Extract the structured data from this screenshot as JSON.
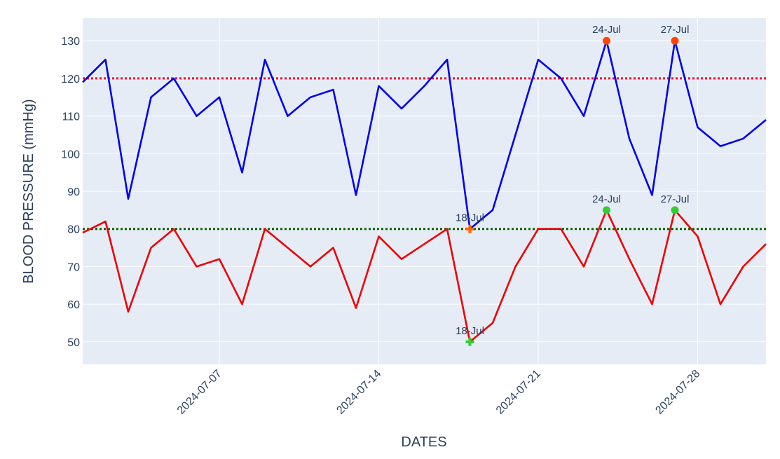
{
  "chart_data": {
    "type": "line",
    "xlabel": "DATES",
    "ylabel": "BLOOD PRESSURE (mmHg)",
    "x": [
      "2024-07-02",
      "2024-07-03",
      "2024-07-04",
      "2024-07-05",
      "2024-07-06",
      "2024-07-07",
      "2024-07-08",
      "2024-07-09",
      "2024-07-10",
      "2024-07-11",
      "2024-07-12",
      "2024-07-13",
      "2024-07-14",
      "2024-07-15",
      "2024-07-16",
      "2024-07-17",
      "2024-07-18",
      "2024-07-19",
      "2024-07-20",
      "2024-07-21",
      "2024-07-22",
      "2024-07-23",
      "2024-07-24",
      "2024-07-25",
      "2024-07-26",
      "2024-07-27",
      "2024-07-28",
      "2024-07-29",
      "2024-07-30",
      "2024-07-31"
    ],
    "x_tick_dates": [
      "2024-07-07",
      "2024-07-14",
      "2024-07-21",
      "2024-07-28"
    ],
    "x_tick_labels": [
      "2024-07-07",
      "2024-07-14",
      "2024-07-21",
      "2024-07-28"
    ],
    "y_ticks": [
      50,
      60,
      70,
      80,
      90,
      100,
      110,
      120,
      130
    ],
    "y_tick_labels": [
      "50",
      "60",
      "70",
      "80",
      "90",
      "100",
      "110",
      "120",
      "130"
    ],
    "xlim": [
      "2024-07-01",
      "2024-07-31"
    ],
    "ylim": [
      44,
      136
    ],
    "grid": true,
    "series": [
      {
        "color": "#0000ee",
        "x": [
          "2024-07-01",
          "2024-07-02",
          "2024-07-03",
          "2024-07-04",
          "2024-07-05",
          "2024-07-06",
          "2024-07-07",
          "2024-07-08",
          "2024-07-09",
          "2024-07-10",
          "2024-07-11",
          "2024-07-12",
          "2024-07-13",
          "2024-07-14",
          "2024-07-15",
          "2024-07-16",
          "2024-07-17",
          "2024-07-18",
          "2024-07-19",
          "2024-07-20",
          "2024-07-21",
          "2024-07-22",
          "2024-07-23",
          "2024-07-24",
          "2024-07-25",
          "2024-07-26",
          "2024-07-27",
          "2024-07-28",
          "2024-07-29",
          "2024-07-30",
          "2024-07-31"
        ],
        "values": [
          119,
          125,
          88,
          115,
          120,
          110,
          115,
          95,
          125,
          110,
          115,
          117,
          89,
          118,
          112,
          118,
          125,
          80,
          85,
          105,
          125,
          120,
          110,
          130,
          104,
          89,
          130,
          107,
          102,
          104,
          109
        ]
      },
      {
        "color": "#ee0000",
        "x": [
          "2024-07-01",
          "2024-07-02",
          "2024-07-03",
          "2024-07-04",
          "2024-07-05",
          "2024-07-06",
          "2024-07-07",
          "2024-07-08",
          "2024-07-09",
          "2024-07-10",
          "2024-07-11",
          "2024-07-12",
          "2024-07-13",
          "2024-07-14",
          "2024-07-15",
          "2024-07-16",
          "2024-07-17",
          "2024-07-18",
          "2024-07-19",
          "2024-07-20",
          "2024-07-21",
          "2024-07-22",
          "2024-07-23",
          "2024-07-24",
          "2024-07-25",
          "2024-07-26",
          "2024-07-27",
          "2024-07-28",
          "2024-07-29",
          "2024-07-30",
          "2024-07-31"
        ],
        "values": [
          79,
          82,
          58,
          75,
          80,
          70,
          72,
          60,
          80,
          75,
          70,
          75,
          59,
          78,
          72,
          76,
          80,
          50,
          55,
          70,
          80,
          80,
          70,
          85,
          72,
          60,
          85,
          78,
          60,
          70,
          76
        ]
      }
    ],
    "reference_lines": [
      {
        "value": 120,
        "color": "#ee0033",
        "style": "dotted"
      },
      {
        "value": 80,
        "color": "#006400",
        "style": "dotted"
      }
    ],
    "markers": [
      {
        "x": "2024-07-18",
        "y": 80,
        "shape": "cross",
        "color": "#ff6600",
        "label": "18-Jul"
      },
      {
        "x": "2024-07-18",
        "y": 50,
        "shape": "cross",
        "color": "#33cc33",
        "label": "18-Jul"
      },
      {
        "x": "2024-07-24",
        "y": 130,
        "shape": "circle",
        "color": "#ff4500",
        "label": "24-Jul"
      },
      {
        "x": "2024-07-27",
        "y": 130,
        "shape": "circle",
        "color": "#ff4500",
        "label": "27-Jul"
      },
      {
        "x": "2024-07-24",
        "y": 85,
        "shape": "circle",
        "color": "#33cc33",
        "label": "24-Jul"
      },
      {
        "x": "2024-07-27",
        "y": 85,
        "shape": "circle",
        "color": "#33cc33",
        "label": "27-Jul"
      }
    ],
    "plot_bgcolor": "#e5ecf6",
    "grid_color": "#ffffff"
  }
}
